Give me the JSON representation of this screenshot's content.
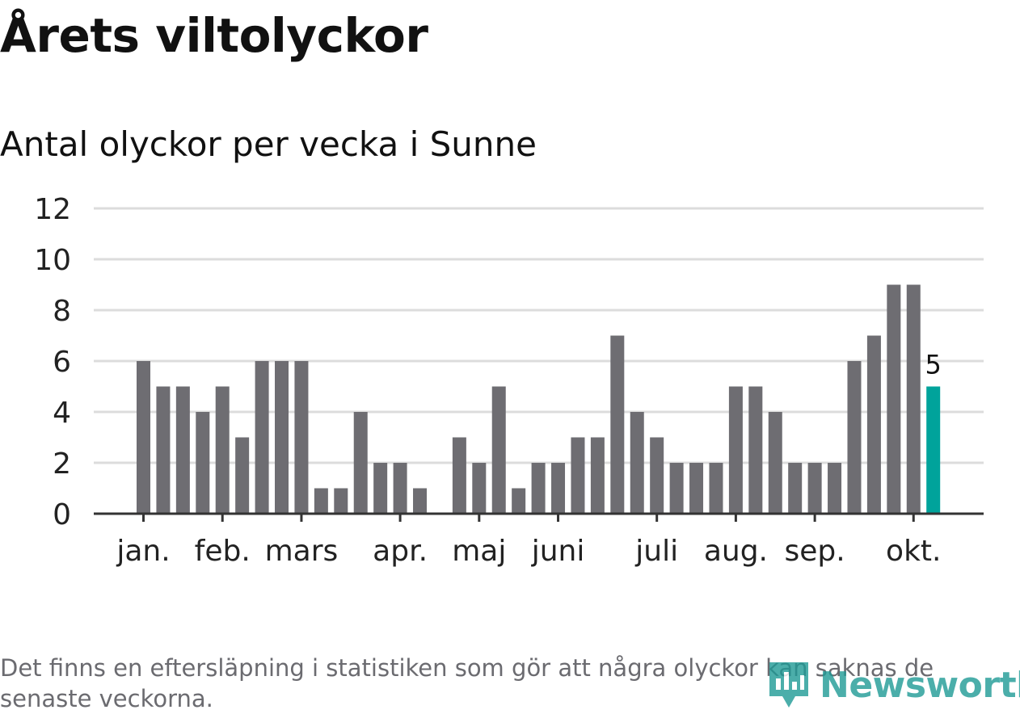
{
  "header": {
    "title": "Årets viltolyckor",
    "subtitle": "Antal olyckor per vecka i Sunne"
  },
  "colors": {
    "bar": "#6e6d72",
    "highlight": "#00a39b",
    "grid": "#dcdcdc",
    "axis": "#333333",
    "text": "#222222",
    "brand": "#1f9a96"
  },
  "chart_data": {
    "type": "bar",
    "title": "Årets viltolyckor",
    "subtitle": "Antal olyckor per vecka i Sunne",
    "xlabel": "",
    "ylabel": "",
    "ylim": [
      0,
      12
    ],
    "yticks": [
      0,
      2,
      4,
      6,
      8,
      10,
      12
    ],
    "grid": true,
    "values": [
      6,
      5,
      5,
      4,
      5,
      3,
      6,
      6,
      6,
      1,
      1,
      4,
      2,
      2,
      1,
      0,
      3,
      2,
      5,
      1,
      2,
      2,
      3,
      3,
      7,
      4,
      3,
      2,
      2,
      2,
      5,
      5,
      4,
      2,
      2,
      2,
      6,
      7,
      9,
      9,
      5
    ],
    "highlight_index": 40,
    "highlight_label": "5",
    "month_labels": [
      {
        "label": "jan.",
        "index": 0
      },
      {
        "label": "feb.",
        "index": 4
      },
      {
        "label": "mars",
        "index": 8
      },
      {
        "label": "apr.",
        "index": 13
      },
      {
        "label": "maj",
        "index": 17
      },
      {
        "label": "juni",
        "index": 21
      },
      {
        "label": "juli",
        "index": 26
      },
      {
        "label": "aug.",
        "index": 30
      },
      {
        "label": "sep.",
        "index": 34
      },
      {
        "label": "okt.",
        "index": 39
      }
    ]
  },
  "footer": {
    "note": "Det finns en eftersläpning i statistiken som gör att några olyckor kan saknas de senaste veckorna.",
    "brand": "Newsworthy",
    "brand_icon": "newsworthy-logo-icon"
  }
}
